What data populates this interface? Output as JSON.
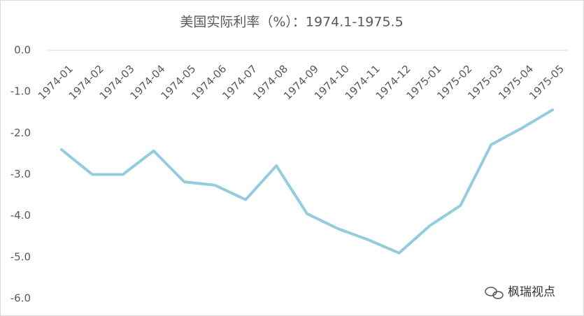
{
  "chart_data": {
    "type": "line",
    "title": "美国实际利率（%）：1974.1-1975.5",
    "categories": [
      "1974-01",
      "1974-02",
      "1974-03",
      "1974-04",
      "1974-05",
      "1974-06",
      "1974-07",
      "1974-08",
      "1974-09",
      "1974-10",
      "1974-11",
      "1974-12",
      "1975-01",
      "1975-02",
      "1975-03",
      "1975-04",
      "1975-05"
    ],
    "values": [
      -2.4,
      -3.0,
      -3.0,
      -2.43,
      -3.18,
      -3.26,
      -3.61,
      -2.79,
      -3.95,
      -4.31,
      -4.58,
      -4.9,
      -4.24,
      -3.75,
      -2.28,
      -1.88,
      -1.44
    ],
    "color": "#92cddc",
    "ylim": [
      -6,
      0
    ],
    "yticks": [
      {
        "value": 0,
        "label": "0.0"
      },
      {
        "value": -1,
        "label": "-1.0"
      },
      {
        "value": -2,
        "label": "-2.0"
      },
      {
        "value": -3,
        "label": "-3.0"
      },
      {
        "value": -4,
        "label": "-4.0"
      },
      {
        "value": -5,
        "label": "-5.0"
      },
      {
        "value": -6,
        "label": "-6.0"
      }
    ],
    "annotation": "枫瑞视点"
  }
}
